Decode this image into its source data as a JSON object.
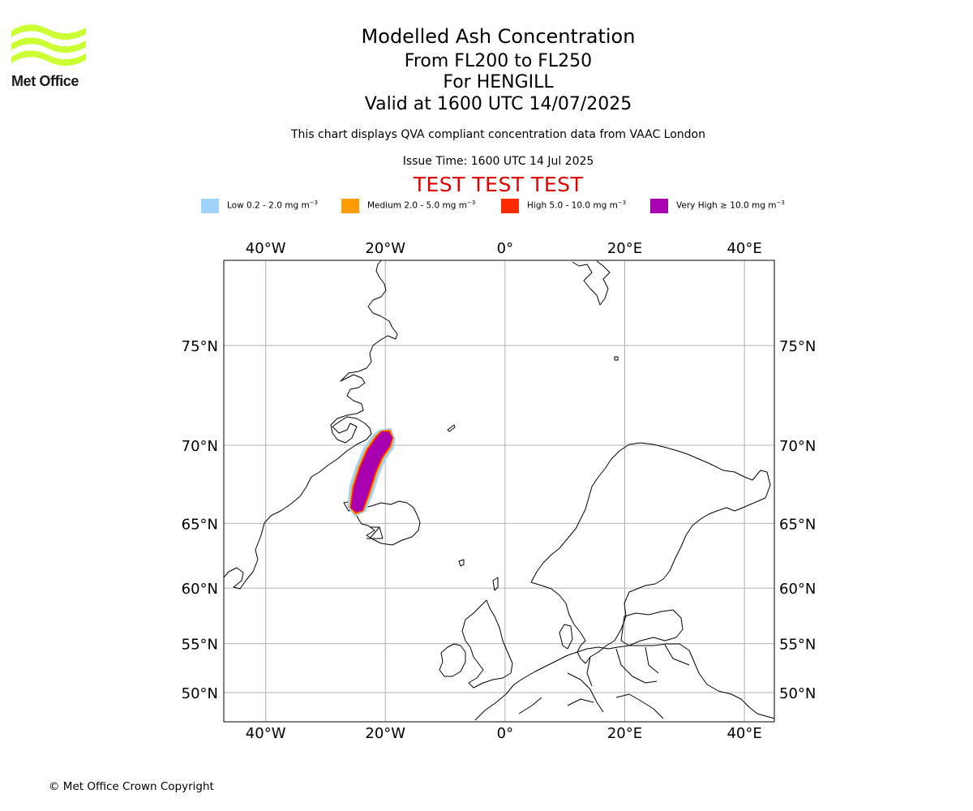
{
  "brand": {
    "name": "Met Office",
    "logo_color": "#ccff33"
  },
  "header": {
    "title": "Modelled Ash Concentration",
    "flight_levels": "From FL200 to FL250",
    "volcano": "For HENGILL",
    "valid": "Valid at 1600 UTC 14/07/2025",
    "compliance_note": "This chart displays QVA compliant concentration data from VAAC London",
    "issue_time": "Issue Time: 1600 UTC 14 Jul 2025",
    "test_banner": "TEST TEST TEST",
    "test_color": "#e00000"
  },
  "legend": [
    {
      "label": "Low 0.2 - 2.0 mg m",
      "unit_exp": "−3",
      "color": "#a0d4ff"
    },
    {
      "label": "Medium 2.0 - 5.0 mg m",
      "unit_exp": "−3",
      "color": "#ff9d00"
    },
    {
      "label": "High 5.0 - 10.0 mg m",
      "unit_exp": "−3",
      "color": "#ff2a00"
    },
    {
      "label": "Very High  ≥  10.0 mg m",
      "unit_exp": "−3",
      "color": "#a800b0"
    }
  ],
  "map": {
    "lon_ticks": [
      "40°W",
      "20°W",
      "0°",
      "20°E",
      "40°E"
    ],
    "lat_ticks": [
      "75°N",
      "70°N",
      "65°N",
      "60°N",
      "55°N",
      "50°N"
    ],
    "extent": {
      "lon": [
        -47,
        45
      ],
      "lat": [
        48,
        81
      ]
    },
    "gridlines": true,
    "coastline_color": "#000000",
    "gridline_color": "#b0b0b0",
    "ash_cloud": {
      "volcano": "HENGILL",
      "axis_points": [
        [
          -24.8,
          66.0
        ],
        [
          -24.0,
          67.3
        ],
        [
          -23.0,
          68.5
        ],
        [
          -21.8,
          69.5
        ],
        [
          -20.4,
          70.2
        ],
        [
          -19.7,
          70.6
        ]
      ],
      "levels": [
        "Low",
        "Medium",
        "High",
        "Very High"
      ]
    }
  },
  "footer": {
    "copyright": "© Met Office Crown Copyright"
  }
}
